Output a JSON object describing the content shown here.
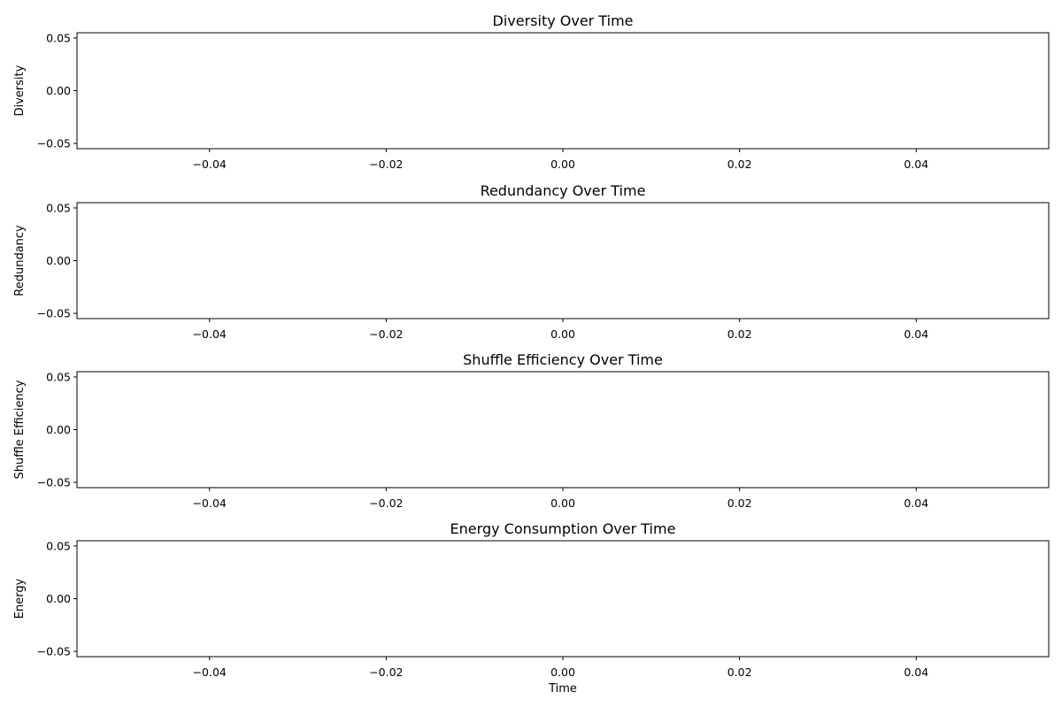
{
  "chart_data": [
    {
      "type": "line",
      "title": "Diversity Over Time",
      "xlabel": "",
      "ylabel": "Diversity",
      "xlim": [
        -0.055,
        0.055
      ],
      "ylim": [
        -0.055,
        0.055
      ],
      "xticks": [
        -0.04,
        -0.02,
        0.0,
        0.02,
        0.04
      ],
      "xtick_labels": [
        "−0.04",
        "−0.02",
        "0.00",
        "0.02",
        "0.04"
      ],
      "yticks": [
        0.05,
        0.0,
        -0.05
      ],
      "ytick_labels": [
        "0.05",
        "0.00",
        "−0.05"
      ],
      "series": [
        {
          "x": [],
          "values": []
        }
      ],
      "grid": false,
      "legend": "none"
    },
    {
      "type": "line",
      "title": "Redundancy Over Time",
      "xlabel": "",
      "ylabel": "Redundancy",
      "xlim": [
        -0.055,
        0.055
      ],
      "ylim": [
        -0.055,
        0.055
      ],
      "xticks": [
        -0.04,
        -0.02,
        0.0,
        0.02,
        0.04
      ],
      "xtick_labels": [
        "−0.04",
        "−0.02",
        "0.00",
        "0.02",
        "0.04"
      ],
      "yticks": [
        0.05,
        0.0,
        -0.05
      ],
      "ytick_labels": [
        "0.05",
        "0.00",
        "−0.05"
      ],
      "series": [
        {
          "x": [],
          "values": []
        }
      ],
      "grid": false,
      "legend": "none"
    },
    {
      "type": "line",
      "title": "Shuffle Efficiency Over Time",
      "xlabel": "",
      "ylabel": "Shuffle Efficiency",
      "xlim": [
        -0.055,
        0.055
      ],
      "ylim": [
        -0.055,
        0.055
      ],
      "xticks": [
        -0.04,
        -0.02,
        0.0,
        0.02,
        0.04
      ],
      "xtick_labels": [
        "−0.04",
        "−0.02",
        "0.00",
        "0.02",
        "0.04"
      ],
      "yticks": [
        0.05,
        0.0,
        -0.05
      ],
      "ytick_labels": [
        "0.05",
        "0.00",
        "−0.05"
      ],
      "series": [
        {
          "x": [],
          "values": []
        }
      ],
      "grid": false,
      "legend": "none"
    },
    {
      "type": "line",
      "title": "Energy Consumption Over Time",
      "xlabel": "Time",
      "ylabel": "Energy",
      "xlim": [
        -0.055,
        0.055
      ],
      "ylim": [
        -0.055,
        0.055
      ],
      "xticks": [
        -0.04,
        -0.02,
        0.0,
        0.02,
        0.04
      ],
      "xtick_labels": [
        "−0.04",
        "−0.02",
        "0.00",
        "0.02",
        "0.04"
      ],
      "yticks": [
        0.05,
        0.0,
        -0.05
      ],
      "ytick_labels": [
        "0.05",
        "0.00",
        "−0.05"
      ],
      "series": [
        {
          "x": [],
          "values": []
        }
      ],
      "grid": false,
      "legend": "none"
    }
  ]
}
